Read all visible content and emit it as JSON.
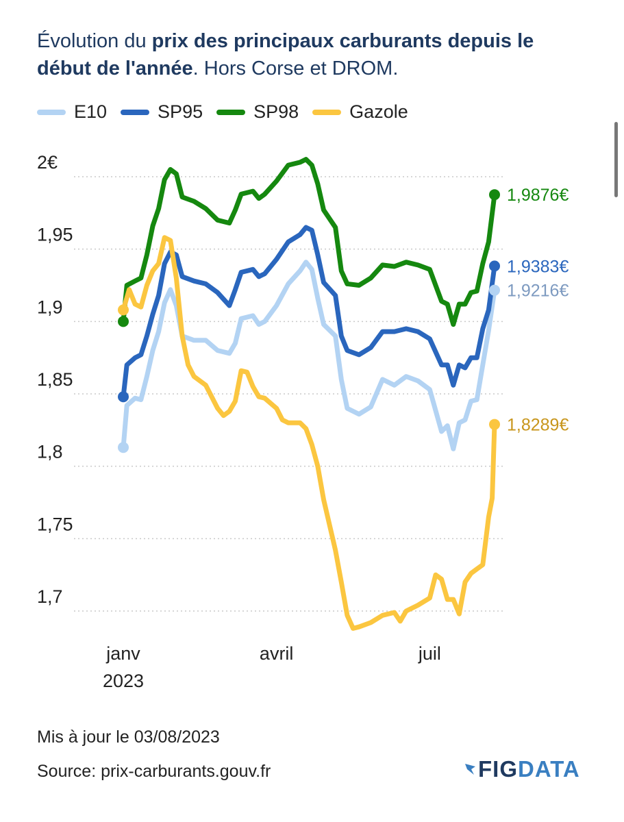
{
  "title": {
    "part1": "Évolution du ",
    "bold1": "prix des principaux carburants depuis le début de l'année",
    "part2": ". Hors Corse et DROM."
  },
  "footer": {
    "updated": "Mis à jour le 03/08/2023",
    "source": "Source: prix-carburants.gouv.fr"
  },
  "logo": {
    "fig": "FIG",
    "data": "DATA"
  },
  "chart_data": {
    "type": "line",
    "title": "Évolution du prix des principaux carburants depuis le début de l'année. Hors Corse et DROM.",
    "xlabel": "",
    "ylabel": "",
    "ylim": [
      1.68,
      2.01
    ],
    "xlim": [
      0,
      31
    ],
    "x_unit": "weeks since start of January 2023",
    "y_ticks": [
      1.7,
      1.75,
      1.8,
      1.85,
      1.9,
      1.95,
      2.0
    ],
    "y_tick_labels": [
      "1,7",
      "1,75",
      "1,8",
      "1,85",
      "1,9",
      "1,95",
      "2€"
    ],
    "x_ticks": [
      {
        "x": 0,
        "label": "janv",
        "sublabel": "2023"
      },
      {
        "x": 13,
        "label": "avril",
        "sublabel": ""
      },
      {
        "x": 26,
        "label": "juil",
        "sublabel": ""
      }
    ],
    "grid": true,
    "legend": "top-left",
    "series": [
      {
        "name": "E10",
        "color": "#b3d3f3",
        "label_color": "#7d9ac0",
        "end_label": "1,9216€",
        "points": [
          [
            0,
            1.813
          ],
          [
            0.3,
            1.842
          ],
          [
            1,
            1.847
          ],
          [
            1.5,
            1.846
          ],
          [
            2,
            1.862
          ],
          [
            2.5,
            1.88
          ],
          [
            3,
            1.893
          ],
          [
            3.5,
            1.913
          ],
          [
            4,
            1.922
          ],
          [
            4.5,
            1.911
          ],
          [
            5,
            1.89
          ],
          [
            6,
            1.887
          ],
          [
            7,
            1.887
          ],
          [
            8,
            1.88
          ],
          [
            9,
            1.878
          ],
          [
            9.5,
            1.885
          ],
          [
            10,
            1.902
          ],
          [
            11,
            1.904
          ],
          [
            11.5,
            1.898
          ],
          [
            12,
            1.9
          ],
          [
            13,
            1.911
          ],
          [
            14,
            1.926
          ],
          [
            15,
            1.935
          ],
          [
            15.5,
            1.941
          ],
          [
            16,
            1.936
          ],
          [
            16.5,
            1.916
          ],
          [
            17,
            1.898
          ],
          [
            18,
            1.89
          ],
          [
            18.5,
            1.86
          ],
          [
            19,
            1.84
          ],
          [
            20,
            1.836
          ],
          [
            21,
            1.841
          ],
          [
            22,
            1.86
          ],
          [
            23,
            1.856
          ],
          [
            24,
            1.862
          ],
          [
            25,
            1.859
          ],
          [
            26,
            1.853
          ],
          [
            27,
            1.824
          ],
          [
            27.5,
            1.828
          ],
          [
            28,
            1.812
          ],
          [
            28.5,
            1.83
          ],
          [
            29,
            1.832
          ],
          [
            29.5,
            1.845
          ],
          [
            30,
            1.846
          ],
          [
            30.5,
            1.87
          ],
          [
            31,
            1.894
          ],
          [
            31.5,
            1.9216
          ]
        ]
      },
      {
        "name": "SP95",
        "color": "#2a66bd",
        "label_color": "#2a66bd",
        "end_label": "1,9383€",
        "points": [
          [
            0,
            1.848
          ],
          [
            0.3,
            1.87
          ],
          [
            1,
            1.875
          ],
          [
            1.5,
            1.877
          ],
          [
            2,
            1.89
          ],
          [
            2.5,
            1.905
          ],
          [
            3,
            1.918
          ],
          [
            3.5,
            1.94
          ],
          [
            4,
            1.948
          ],
          [
            4.5,
            1.946
          ],
          [
            5,
            1.931
          ],
          [
            6,
            1.928
          ],
          [
            7,
            1.926
          ],
          [
            8,
            1.92
          ],
          [
            9,
            1.911
          ],
          [
            9.5,
            1.922
          ],
          [
            10,
            1.934
          ],
          [
            11,
            1.936
          ],
          [
            11.5,
            1.931
          ],
          [
            12,
            1.933
          ],
          [
            13,
            1.943
          ],
          [
            14,
            1.955
          ],
          [
            15,
            1.96
          ],
          [
            15.5,
            1.965
          ],
          [
            16,
            1.963
          ],
          [
            16.5,
            1.946
          ],
          [
            17,
            1.927
          ],
          [
            18,
            1.918
          ],
          [
            18.5,
            1.89
          ],
          [
            19,
            1.88
          ],
          [
            20,
            1.877
          ],
          [
            21,
            1.882
          ],
          [
            22,
            1.893
          ],
          [
            23,
            1.893
          ],
          [
            24,
            1.895
          ],
          [
            25,
            1.893
          ],
          [
            26,
            1.888
          ],
          [
            27,
            1.87
          ],
          [
            27.5,
            1.87
          ],
          [
            28,
            1.856
          ],
          [
            28.5,
            1.87
          ],
          [
            29,
            1.868
          ],
          [
            29.5,
            1.875
          ],
          [
            30,
            1.875
          ],
          [
            30.5,
            1.895
          ],
          [
            31,
            1.908
          ],
          [
            31.5,
            1.9383
          ]
        ]
      },
      {
        "name": "SP98",
        "color": "#15880f",
        "label_color": "#15880f",
        "end_label": "1,9876€",
        "points": [
          [
            0,
            1.9
          ],
          [
            0.3,
            1.925
          ],
          [
            1,
            1.928
          ],
          [
            1.5,
            1.93
          ],
          [
            2,
            1.946
          ],
          [
            2.5,
            1.966
          ],
          [
            3,
            1.978
          ],
          [
            3.5,
            1.998
          ],
          [
            4,
            2.005
          ],
          [
            4.5,
            2.002
          ],
          [
            5,
            1.986
          ],
          [
            6,
            1.983
          ],
          [
            7,
            1.978
          ],
          [
            8,
            1.97
          ],
          [
            9,
            1.968
          ],
          [
            9.5,
            1.977
          ],
          [
            10,
            1.988
          ],
          [
            11,
            1.99
          ],
          [
            11.5,
            1.985
          ],
          [
            12,
            1.988
          ],
          [
            13,
            1.997
          ],
          [
            14,
            2.008
          ],
          [
            15,
            2.01
          ],
          [
            15.5,
            2.012
          ],
          [
            16,
            2.008
          ],
          [
            16.5,
            1.995
          ],
          [
            17,
            1.977
          ],
          [
            18,
            1.965
          ],
          [
            18.5,
            1.935
          ],
          [
            19,
            1.926
          ],
          [
            20,
            1.925
          ],
          [
            21,
            1.93
          ],
          [
            22,
            1.939
          ],
          [
            23,
            1.938
          ],
          [
            24,
            1.941
          ],
          [
            25,
            1.939
          ],
          [
            26,
            1.936
          ],
          [
            27,
            1.914
          ],
          [
            27.5,
            1.912
          ],
          [
            28,
            1.898
          ],
          [
            28.5,
            1.912
          ],
          [
            29,
            1.912
          ],
          [
            29.5,
            1.92
          ],
          [
            30,
            1.921
          ],
          [
            30.5,
            1.94
          ],
          [
            31,
            1.955
          ],
          [
            31.5,
            1.9876
          ]
        ]
      },
      {
        "name": "Gazole",
        "color": "#fbc640",
        "label_color": "#c8961c",
        "end_label": "1,8289€",
        "points": [
          [
            0,
            1.908
          ],
          [
            0.5,
            1.922
          ],
          [
            1,
            1.912
          ],
          [
            1.5,
            1.91
          ],
          [
            2,
            1.925
          ],
          [
            2.5,
            1.935
          ],
          [
            3,
            1.94
          ],
          [
            3.5,
            1.958
          ],
          [
            4,
            1.956
          ],
          [
            4.5,
            1.93
          ],
          [
            5,
            1.89
          ],
          [
            5.5,
            1.87
          ],
          [
            6,
            1.862
          ],
          [
            7,
            1.856
          ],
          [
            8,
            1.84
          ],
          [
            8.5,
            1.835
          ],
          [
            9,
            1.838
          ],
          [
            9.5,
            1.845
          ],
          [
            10,
            1.866
          ],
          [
            10.5,
            1.865
          ],
          [
            11,
            1.855
          ],
          [
            11.5,
            1.848
          ],
          [
            12,
            1.847
          ],
          [
            13,
            1.84
          ],
          [
            13.5,
            1.832
          ],
          [
            14,
            1.83
          ],
          [
            15,
            1.83
          ],
          [
            15.5,
            1.826
          ],
          [
            16,
            1.815
          ],
          [
            16.5,
            1.8
          ],
          [
            17,
            1.777
          ],
          [
            18,
            1.742
          ],
          [
            18.5,
            1.72
          ],
          [
            19,
            1.697
          ],
          [
            19.5,
            1.688
          ],
          [
            20,
            1.689
          ],
          [
            21,
            1.692
          ],
          [
            22,
            1.697
          ],
          [
            23,
            1.699
          ],
          [
            23.5,
            1.693
          ],
          [
            24,
            1.7
          ],
          [
            25,
            1.704
          ],
          [
            26,
            1.709
          ],
          [
            26.5,
            1.725
          ],
          [
            27,
            1.722
          ],
          [
            27.5,
            1.708
          ],
          [
            28,
            1.708
          ],
          [
            28.5,
            1.698
          ],
          [
            29,
            1.72
          ],
          [
            29.5,
            1.726
          ],
          [
            30,
            1.729
          ],
          [
            30.5,
            1.732
          ],
          [
            31,
            1.765
          ],
          [
            31.3,
            1.778
          ],
          [
            31.5,
            1.8289
          ]
        ]
      }
    ]
  }
}
